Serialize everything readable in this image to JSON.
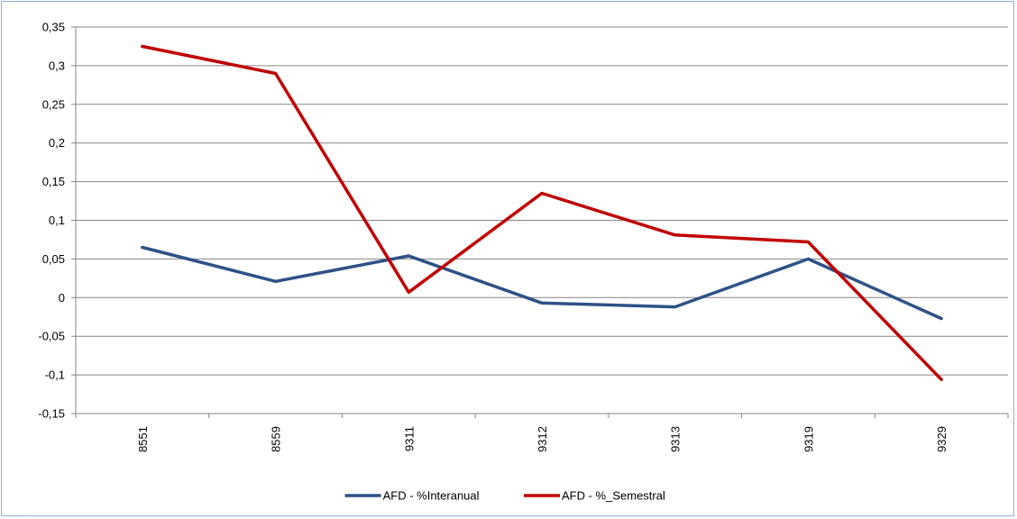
{
  "chart_data": {
    "type": "line",
    "categories": [
      "8551",
      "8559",
      "9311",
      "9312",
      "9313",
      "9319",
      "9329"
    ],
    "series": [
      {
        "name": "AFD - %Interanual",
        "color": "#2e5187",
        "values": [
          0.065,
          0.021,
          0.054,
          -0.007,
          -0.012,
          0.05,
          -0.027
        ]
      },
      {
        "name": "AFD - %_Semestral",
        "color": "#c00000",
        "values": [
          0.325,
          0.29,
          0.007,
          0.135,
          0.081,
          0.072,
          -0.106
        ]
      }
    ],
    "y_ticks": [
      "0,35",
      "0,3",
      "0,25",
      "0,2",
      "0,15",
      "0,1",
      "0,05",
      "0",
      "-0,05",
      "-0,1",
      "-0,15"
    ],
    "ylim": [
      -0.15,
      0.35
    ],
    "grid": true,
    "legend_position": "bottom"
  }
}
